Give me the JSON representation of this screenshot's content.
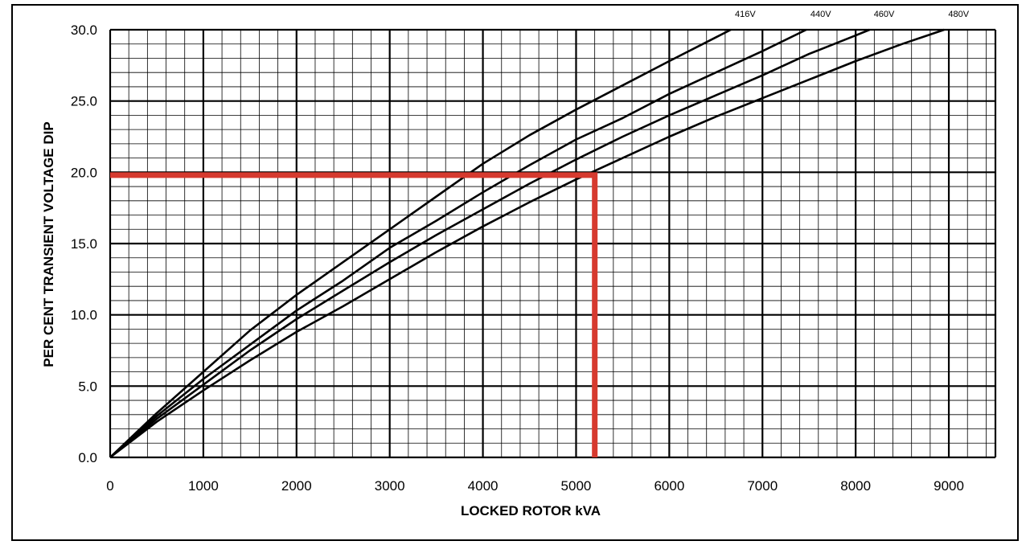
{
  "chart_data": {
    "type": "line",
    "xlabel": "LOCKED ROTOR kVA",
    "ylabel": "PER CENT TRANSIENT VOLTAGE DIP",
    "xlim": [
      0,
      9500
    ],
    "ylim": [
      0,
      30
    ],
    "x_ticks": [
      "0",
      "1000",
      "2000",
      "3000",
      "4000",
      "5000",
      "6000",
      "7000",
      "8000",
      "9000"
    ],
    "y_ticks": [
      "0.0",
      "5.0",
      "10.0",
      "15.0",
      "20.0",
      "25.0",
      "30.0"
    ],
    "grid": true,
    "series": [
      {
        "name": "416V",
        "x": [
          0,
          500,
          1000,
          1500,
          2000,
          2500,
          3000,
          3500,
          4000,
          4500,
          5000,
          5500,
          6000,
          6660
        ],
        "y": [
          0,
          3.1,
          6.0,
          8.9,
          11.4,
          13.7,
          16.0,
          18.3,
          20.6,
          22.6,
          24.4,
          26.1,
          27.8,
          30.0
        ]
      },
      {
        "name": "440V",
        "x": [
          0,
          500,
          1000,
          1500,
          2000,
          2500,
          3000,
          3500,
          4000,
          4500,
          5000,
          5500,
          6000,
          6500,
          7000,
          7470
        ],
        "y": [
          0,
          2.9,
          5.5,
          7.9,
          10.3,
          12.4,
          14.7,
          16.6,
          18.6,
          20.5,
          22.3,
          23.8,
          25.5,
          27.0,
          28.5,
          30.0
        ]
      },
      {
        "name": "460V",
        "x": [
          0,
          500,
          1000,
          1500,
          2000,
          2500,
          3000,
          3500,
          4000,
          4500,
          5000,
          5500,
          6000,
          6500,
          7000,
          7500,
          8000,
          8150
        ],
        "y": [
          0,
          2.7,
          5.1,
          7.5,
          9.7,
          11.7,
          13.7,
          15.6,
          17.4,
          19.2,
          20.9,
          22.5,
          24.0,
          25.4,
          26.8,
          28.3,
          29.6,
          30.0
        ]
      },
      {
        "name": "480V",
        "x": [
          0,
          500,
          1000,
          1500,
          2000,
          2500,
          3000,
          3500,
          4000,
          4500,
          5000,
          5500,
          6000,
          6500,
          7000,
          7500,
          8000,
          8500,
          8950
        ],
        "y": [
          0,
          2.5,
          4.7,
          6.8,
          8.8,
          10.6,
          12.5,
          14.4,
          16.2,
          17.9,
          19.5,
          21.0,
          22.5,
          23.9,
          25.2,
          26.5,
          27.8,
          29.0,
          30.0
        ]
      }
    ],
    "annotations": [
      {
        "type": "reference-line",
        "color": "#d63a2f",
        "x": [
          0,
          5200,
          5200
        ],
        "y": [
          19.8,
          19.8,
          0
        ]
      }
    ],
    "colors": {
      "series": "#000000",
      "reference": "#d63a2f",
      "major_grid": "#000000",
      "minor_grid": "#000000"
    }
  }
}
